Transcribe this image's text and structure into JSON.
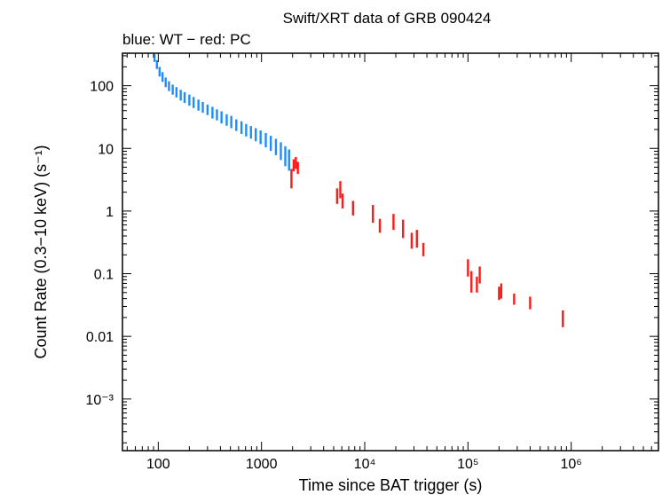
{
  "chart_data": {
    "type": "scatter",
    "title": "Swift/XRT data of GRB 090424",
    "subtitle": "blue: WT − red: PC",
    "xlabel": "Time since BAT trigger (s)",
    "ylabel": "Count Rate (0.3−10 keV) (s⁻¹)",
    "x_scale": "log",
    "y_scale": "log",
    "xlim": [
      45,
      7000000
    ],
    "ylim": [
      0.00015,
      330
    ],
    "x_ticks": [
      {
        "value": 100,
        "label": "100"
      },
      {
        "value": 1000,
        "label": "1000"
      },
      {
        "value": 10000,
        "label": "10⁴"
      },
      {
        "value": 100000,
        "label": "10⁵"
      },
      {
        "value": 1000000,
        "label": "10⁶"
      }
    ],
    "y_ticks": [
      {
        "value": 100,
        "label": "100"
      },
      {
        "value": 10,
        "label": "10"
      },
      {
        "value": 1,
        "label": "1"
      },
      {
        "value": 0.1,
        "label": "0.1"
      },
      {
        "value": 0.01,
        "label": "0.01"
      },
      {
        "value": 0.001,
        "label": "10⁻³"
      }
    ],
    "grid": false,
    "series": [
      {
        "name": "WT",
        "color": "#1e8cff",
        "points": [
          [
            92,
            280,
            40
          ],
          [
            97,
            220,
            35
          ],
          [
            103,
            170,
            30
          ],
          [
            110,
            140,
            25
          ],
          [
            118,
            115,
            20
          ],
          [
            127,
            100,
            18
          ],
          [
            138,
            88,
            16
          ],
          [
            150,
            80,
            15
          ],
          [
            165,
            72,
            14
          ],
          [
            180,
            66,
            13
          ],
          [
            200,
            60,
            12
          ],
          [
            220,
            55,
            11
          ],
          [
            245,
            50,
            10
          ],
          [
            270,
            46,
            9
          ],
          [
            300,
            42,
            8
          ],
          [
            335,
            38,
            8
          ],
          [
            370,
            35,
            7
          ],
          [
            410,
            32,
            7
          ],
          [
            460,
            29,
            6
          ],
          [
            510,
            27,
            6
          ],
          [
            570,
            24,
            5
          ],
          [
            640,
            22,
            5
          ],
          [
            710,
            20,
            4.5
          ],
          [
            790,
            18.5,
            4.2
          ],
          [
            880,
            17,
            4
          ],
          [
            980,
            15.5,
            3.8
          ],
          [
            1100,
            14,
            3.6
          ],
          [
            1230,
            12.5,
            3.4
          ],
          [
            1380,
            11,
            3.2
          ],
          [
            1540,
            9.5,
            3
          ],
          [
            1700,
            8,
            2.8
          ],
          [
            1850,
            7,
            2.6
          ]
        ]
      },
      {
        "name": "PC",
        "color": "#ff1a1a",
        "points": [
          [
            1950,
            3.5,
            1.2
          ],
          [
            2050,
            5.5,
            1.2
          ],
          [
            2150,
            6.0,
            1.3
          ],
          [
            2250,
            5.0,
            1.1
          ],
          [
            5400,
            1.8,
            0.5
          ],
          [
            5800,
            2.3,
            0.7
          ],
          [
            6100,
            1.5,
            0.4
          ],
          [
            7700,
            1.15,
            0.3
          ],
          [
            12000,
            0.95,
            0.3
          ],
          [
            14000,
            0.6,
            0.15
          ],
          [
            19000,
            0.7,
            0.2
          ],
          [
            23500,
            0.55,
            0.18
          ],
          [
            28500,
            0.35,
            0.1
          ],
          [
            32000,
            0.38,
            0.12
          ],
          [
            37000,
            0.25,
            0.06
          ],
          [
            100000,
            0.13,
            0.04
          ],
          [
            108000,
            0.08,
            0.03
          ],
          [
            122000,
            0.07,
            0.02
          ],
          [
            130000,
            0.1,
            0.03
          ],
          [
            200000,
            0.05,
            0.012
          ],
          [
            210000,
            0.055,
            0.015
          ],
          [
            280000,
            0.04,
            0.008
          ],
          [
            400000,
            0.035,
            0.008
          ],
          [
            830000,
            0.02,
            0.006
          ]
        ]
      }
    ]
  }
}
